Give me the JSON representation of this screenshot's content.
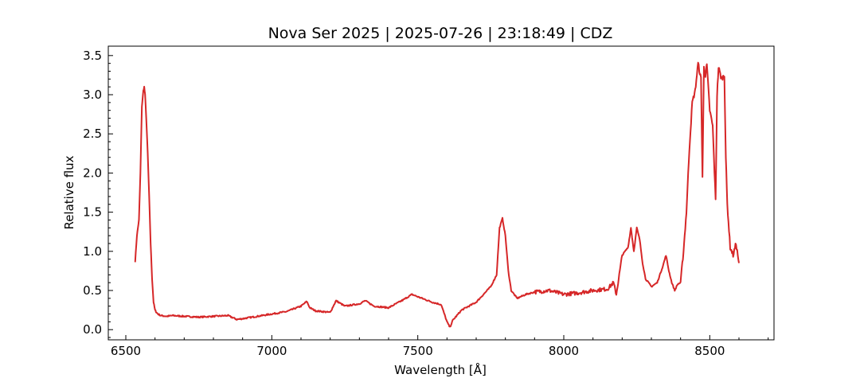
{
  "chart_data": {
    "type": "line",
    "title": "Nova Ser 2025 | 2025-07-26 | 23:18:49 | CDZ",
    "xlabel": "Wavelength [Å]",
    "ylabel": "Relative flux",
    "xlim": [
      6440,
      8720
    ],
    "ylim": [
      -0.13,
      3.62
    ],
    "x_ticks": [
      6500,
      7000,
      7500,
      8000,
      8500
    ],
    "y_ticks": [
      0.0,
      0.5,
      1.0,
      1.5,
      2.0,
      2.5,
      3.0,
      3.5
    ],
    "x_tick_labels": [
      "6500",
      "7000",
      "7500",
      "8000",
      "8500"
    ],
    "y_tick_labels": [
      "0.0",
      "0.5",
      "1.0",
      "1.5",
      "2.0",
      "2.5",
      "3.0",
      "3.5"
    ],
    "grid": false,
    "line_color": "#d62728",
    "series": [
      {
        "x": [
          6532,
          6538,
          6545,
          6550,
          6555,
          6560,
          6563,
          6566,
          6570,
          6575,
          6580,
          6585,
          6590,
          6595,
          6600,
          6605,
          6610,
          6620,
          6640,
          6660,
          6700,
          6750,
          6800,
          6850,
          6880,
          6900,
          6950,
          7000,
          7050,
          7100,
          7120,
          7130,
          7150,
          7200,
          7220,
          7250,
          7300,
          7320,
          7350,
          7400,
          7450,
          7480,
          7500,
          7550,
          7580,
          7600,
          7610,
          7620,
          7650,
          7700,
          7750,
          7770,
          7780,
          7790,
          7800,
          7810,
          7820,
          7840,
          7870,
          7900,
          7950,
          8000,
          8050,
          8100,
          8150,
          8170,
          8180,
          8200,
          8220,
          8230,
          8240,
          8250,
          8260,
          8270,
          8280,
          8300,
          8320,
          8340,
          8350,
          8360,
          8370,
          8380,
          8390,
          8400,
          8410,
          8420,
          8430,
          8440,
          8450,
          8460,
          8470,
          8475,
          8480,
          8485,
          8490,
          8500,
          8510,
          8520,
          8525,
          8530,
          8540,
          8550,
          8555,
          8560,
          8570,
          8580,
          8590,
          8600
        ],
        "y": [
          0.87,
          1.2,
          1.4,
          2.0,
          2.85,
          3.05,
          3.1,
          3.0,
          2.7,
          2.25,
          1.7,
          1.1,
          0.65,
          0.35,
          0.25,
          0.22,
          0.2,
          0.18,
          0.17,
          0.18,
          0.17,
          0.16,
          0.17,
          0.18,
          0.13,
          0.14,
          0.17,
          0.2,
          0.23,
          0.3,
          0.36,
          0.28,
          0.24,
          0.22,
          0.37,
          0.3,
          0.33,
          0.37,
          0.3,
          0.28,
          0.38,
          0.45,
          0.42,
          0.35,
          0.32,
          0.1,
          0.03,
          0.12,
          0.25,
          0.35,
          0.55,
          0.7,
          1.3,
          1.42,
          1.2,
          0.75,
          0.5,
          0.4,
          0.45,
          0.48,
          0.5,
          0.45,
          0.47,
          0.5,
          0.52,
          0.6,
          0.45,
          0.95,
          1.05,
          1.3,
          1.0,
          1.3,
          1.15,
          0.85,
          0.65,
          0.55,
          0.6,
          0.82,
          0.95,
          0.75,
          0.6,
          0.5,
          0.58,
          0.6,
          1.0,
          1.5,
          2.3,
          2.9,
          3.05,
          3.4,
          3.2,
          1.95,
          3.35,
          3.25,
          3.38,
          2.8,
          2.6,
          1.65,
          3.0,
          3.35,
          3.2,
          3.25,
          2.2,
          1.6,
          1.05,
          0.95,
          1.1,
          0.85
        ]
      }
    ]
  }
}
